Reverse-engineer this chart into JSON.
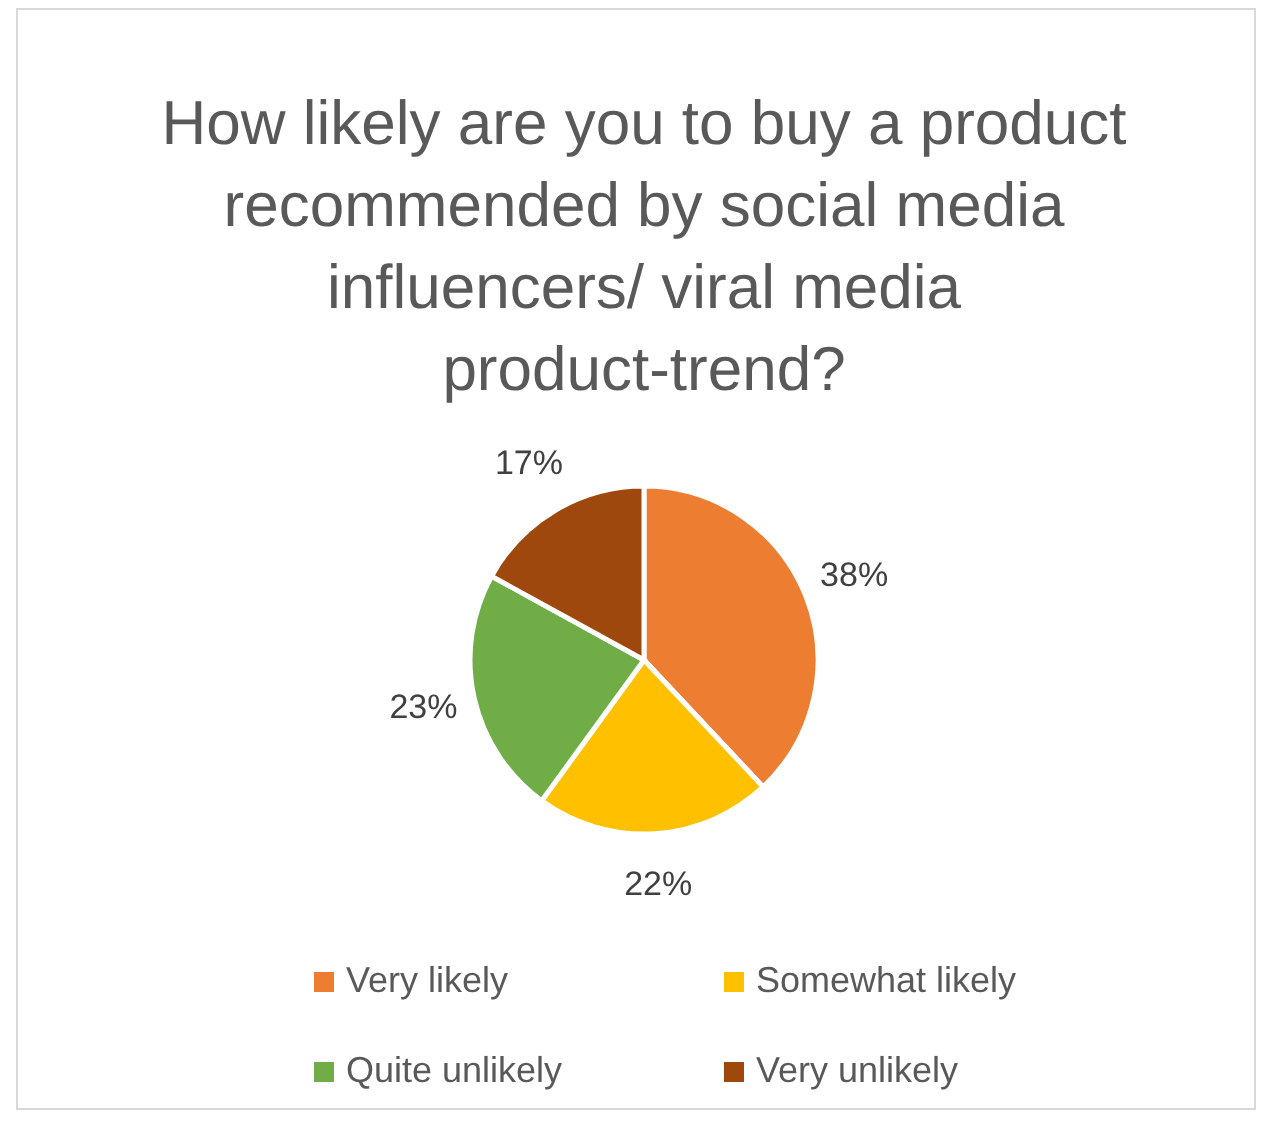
{
  "chart_data": {
    "type": "pie",
    "title": "How likely are you to buy a product recommended by social media influencers/ viral media product-trend?",
    "categories": [
      "Very likely",
      "Somewhat likely",
      "Quite unlikely",
      "Very unlikely"
    ],
    "values": [
      38,
      22,
      23,
      17
    ],
    "value_labels": [
      "38%",
      "22%",
      "23%",
      "17%"
    ],
    "colors": [
      "#ed7d31",
      "#ffc000",
      "#70ad47",
      "#9e480e"
    ],
    "legend": "bottom"
  }
}
